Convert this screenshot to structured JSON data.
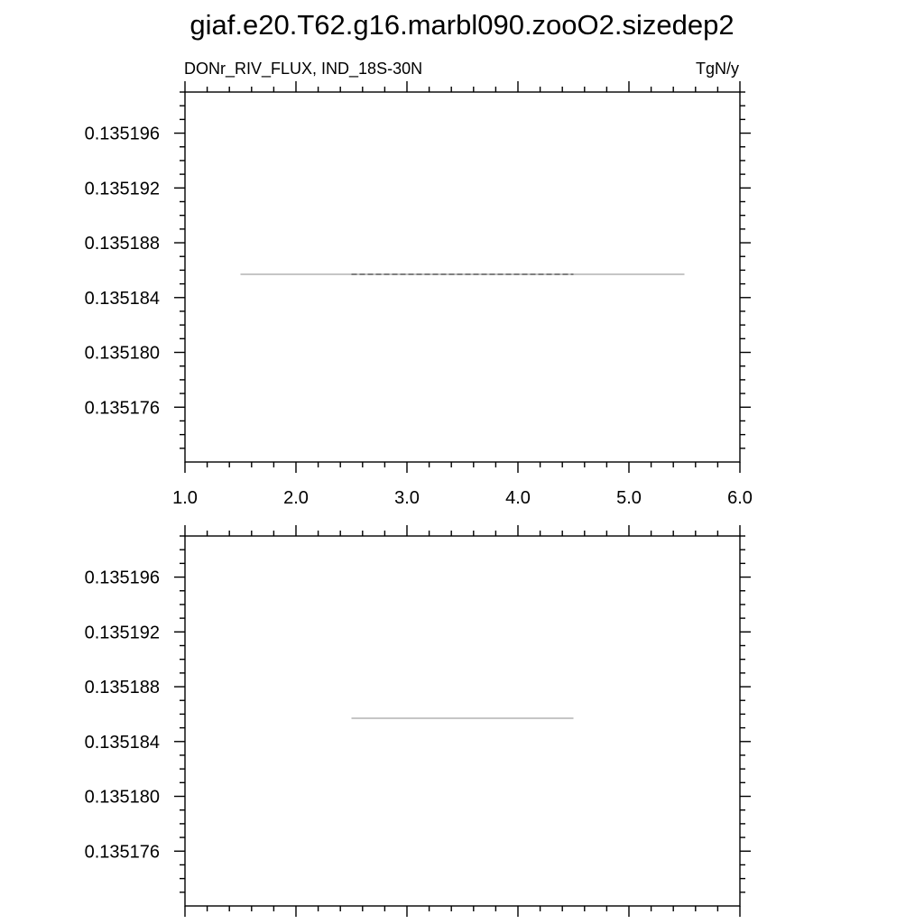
{
  "figure": {
    "title": "giaf.e20.T62.g16.marbl090.zooO2.sizedep2"
  },
  "chart_data": [
    {
      "type": "line",
      "title": "",
      "left_string": "DONr_RIV_FLUX, IND_18S-30N",
      "right_string": "TgN/y",
      "xlim": [
        1.0,
        6.0
      ],
      "ylim": [
        0.135172,
        0.135199
      ],
      "x_tick_values": [
        1.0,
        2.0,
        3.0,
        4.0,
        5.0,
        6.0
      ],
      "x_tick_labels": [
        "1.0",
        "2.0",
        "3.0",
        "4.0",
        "5.0",
        "6.0"
      ],
      "y_tick_values": [
        0.135176,
        0.13518,
        0.135184,
        0.135188,
        0.135192,
        0.135196
      ],
      "y_tick_labels": [
        "0.135176",
        "0.135180",
        "0.135184",
        "0.135188",
        "0.135192",
        "0.135196"
      ],
      "grid": false,
      "series": [
        {
          "style": "solid",
          "color": "#8c8c8c",
          "x": [
            1.5,
            5.5
          ],
          "y": [
            0.1351857,
            0.1351857
          ]
        },
        {
          "style": "dashed",
          "color": "#000000",
          "x": [
            2.5,
            4.5
          ],
          "y": [
            0.1351857,
            0.1351857
          ]
        }
      ]
    },
    {
      "type": "line",
      "title": "",
      "xlim": [
        1.0,
        6.0
      ],
      "ylim": [
        0.135172,
        0.135199
      ],
      "x_tick_values": [
        1.0,
        2.0,
        3.0,
        4.0,
        5.0,
        6.0
      ],
      "x_tick_labels": [],
      "y_tick_values": [
        0.135176,
        0.13518,
        0.135184,
        0.135188,
        0.135192,
        0.135196
      ],
      "y_tick_labels": [
        "0.135176",
        "0.135180",
        "0.135184",
        "0.135188",
        "0.135192",
        "0.135196"
      ],
      "grid": false,
      "series": [
        {
          "style": "solid",
          "color": "#8c8c8c",
          "x": [
            2.5,
            4.5
          ],
          "y": [
            0.1351857,
            0.1351857
          ]
        }
      ]
    }
  ]
}
